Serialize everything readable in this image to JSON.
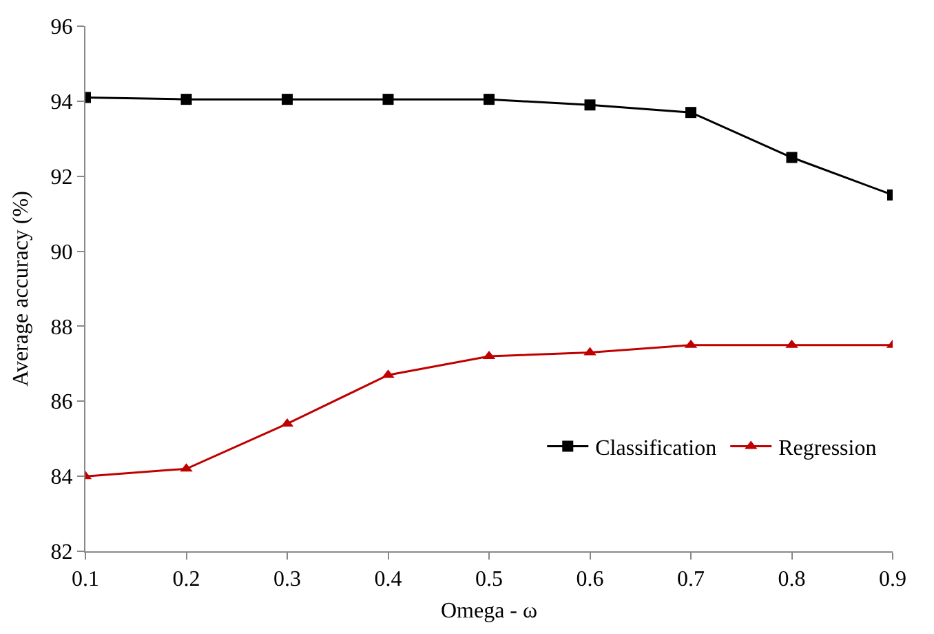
{
  "chart_data": {
    "type": "line",
    "xlabel": "Omega - ω",
    "ylabel": "Average accuracy (%)",
    "x": [
      0.1,
      0.2,
      0.3,
      0.4,
      0.5,
      0.6,
      0.7,
      0.8,
      0.9
    ],
    "xlim": [
      0.1,
      0.9
    ],
    "xticks": [
      0.1,
      0.2,
      0.3,
      0.4,
      0.5,
      0.6,
      0.7,
      0.8,
      0.9
    ],
    "ylim": [
      82,
      96
    ],
    "yticks": [
      82,
      84,
      86,
      88,
      90,
      92,
      94,
      96
    ],
    "grid": false,
    "legend": "bottom right",
    "series": [
      {
        "name": "Classification",
        "color": "#000000",
        "marker": "square",
        "values": [
          94.1,
          94.05,
          94.05,
          94.05,
          94.05,
          93.9,
          93.7,
          92.5,
          91.5
        ]
      },
      {
        "name": "Regression",
        "color": "#c00000",
        "marker": "triangle",
        "values": [
          84.0,
          84.2,
          85.4,
          86.7,
          87.2,
          87.3,
          87.5,
          87.5,
          87.5
        ]
      }
    ]
  }
}
